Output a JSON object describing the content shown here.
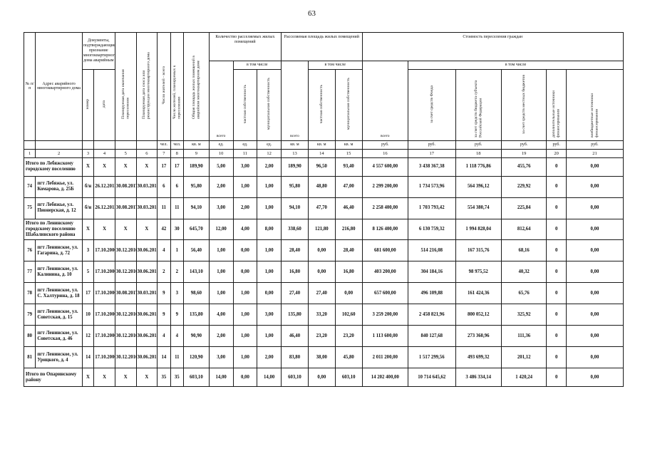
{
  "page": {
    "number": "63"
  },
  "header": {
    "num": "№ п/п",
    "address": "Адрес аварийного многоквартирного дома",
    "docs": "Документы, подтверждающие признание многоквартирного дома аварийным",
    "docs_number": "номер",
    "docs_date": "дата",
    "planned_resettle_date": "Планируемая дата окончания переселения",
    "planned_demolition_date": "Планируемая дата сноса или реконструкции многоквартирного дома",
    "residents_total": "Число жителей - всего",
    "residents_planned": "Число жителей, планируемых к переселению",
    "total_area": "Общая площадь жилых помещений в аварийном многоквартирном доме",
    "count_group": "Количество расселяемых жилых помещений",
    "area_group": "Расселяемая площадь жилых помещений",
    "cost_group": "Стоимость переселения граждан",
    "vsego": "всего",
    "v_tom_chisle": "в том числе",
    "private_prop": "частная собственность",
    "municipal_prop": "муниципальная собственность",
    "cost_fund": "за счет средств Фонда",
    "cost_subject": "за счет средств бюджета субъекта Российской Федерации",
    "cost_local": "за счет средств местных бюджетов",
    "cost_additional": "дополнительные источники финансирования",
    "cost_offbudget": "внебюджетные источники финансирования",
    "units_row": [
      "",
      "",
      "",
      "",
      "",
      "",
      "чел.",
      "чел.",
      "кв. м",
      "ед.",
      "ед.",
      "ед.",
      "кв. м",
      "кв. м",
      "кв. м",
      "руб.",
      "руб.",
      "руб.",
      "руб.",
      "руб.",
      "руб."
    ],
    "col_numbers": [
      "1",
      "2",
      "3",
      "4",
      "5",
      "6",
      "7",
      "8",
      "9",
      "10",
      "11",
      "12",
      "13",
      "14",
      "15",
      "16",
      "17",
      "18",
      "19",
      "20",
      "21"
    ]
  },
  "rows": [
    {
      "type": "total",
      "num": "",
      "address": "Итого по Лебяжскому городскому поселению",
      "cells": [
        "X",
        "X",
        "X",
        "X",
        "17",
        "17",
        "189,90",
        "5,00",
        "3,00",
        "2,00",
        "189,90",
        "96,50",
        "93,40",
        "4 557 600,00",
        "3 438 367,38",
        "1 118 776,86",
        "455,76",
        "0",
        "0,00"
      ]
    },
    {
      "type": "data",
      "num": "74",
      "address": "пгт Лебяжье, ул. Комарова, д. 25Б",
      "cells": [
        "б/н",
        "26.12.2011",
        "30.08.2017",
        "30.03.2018",
        "6",
        "6",
        "95,80",
        "2,00",
        "1,00",
        "1,00",
        "95,80",
        "48,80",
        "47,00",
        "2 299 200,00",
        "1 734 573,96",
        "564 396,12",
        "229,92",
        "0",
        "0,00"
      ]
    },
    {
      "type": "data",
      "num": "75",
      "address": "пгт Лебяжье, ул. Пионерская, д. 12",
      "cells": [
        "б/н",
        "26.12.2011",
        "30.08.2017",
        "30.03.2018",
        "11",
        "11",
        "94,10",
        "3,00",
        "2,00",
        "1,00",
        "94,10",
        "47,70",
        "46,40",
        "2 258 400,00",
        "1 703 793,42",
        "554 380,74",
        "225,84",
        "0",
        "0,00"
      ]
    },
    {
      "type": "total",
      "num": "",
      "address": "Итого по Ленинскому городскому поселению Шабалинского района",
      "cells": [
        "X",
        "X",
        "X",
        "X",
        "42",
        "30",
        "645,70",
        "12,00",
        "4,00",
        "8,00",
        "338,60",
        "121,80",
        "216,80",
        "8 126 400,00",
        "6 130 759,32",
        "1 994 828,04",
        "812,64",
        "0",
        "0,00"
      ]
    },
    {
      "type": "data",
      "num": "76",
      "address": "пгт Ленинское, ул. Гагарина, д. 72",
      "cells": [
        "3",
        "17.10.2006",
        "30.12.2016",
        "30.06.2017",
        "4",
        "1",
        "56,40",
        "1,00",
        "0,00",
        "1,00",
        "28,40",
        "0,00",
        "28,40",
        "681 600,00",
        "514 216,08",
        "167 315,76",
        "68,16",
        "0",
        "0,00"
      ]
    },
    {
      "type": "data",
      "num": "77",
      "address": "пгт Ленинское, ул. Калинина, д. 10",
      "cells": [
        "5",
        "17.10.2006",
        "30.12.2016",
        "30.06.2017",
        "2",
        "2",
        "143,10",
        "1,00",
        "0,00",
        "1,00",
        "16,80",
        "0,00",
        "16,80",
        "403 200,00",
        "304 184,16",
        "98 975,52",
        "40,32",
        "0",
        "0,00"
      ]
    },
    {
      "type": "data",
      "num": "78",
      "address": "пгт Ленинское, ул. С. Халтурина, д. 18",
      "cells": [
        "17",
        "17.10.2006",
        "30.08.2017",
        "30.03.2018",
        "9",
        "3",
        "98,60",
        "1,00",
        "1,00",
        "0,00",
        "27,40",
        "27,40",
        "0,00",
        "657 600,00",
        "496 109,88",
        "161 424,36",
        "65,76",
        "0",
        "0,00"
      ]
    },
    {
      "type": "data",
      "num": "79",
      "address": "пгт Ленинское, ул. Советская, д. 15",
      "cells": [
        "10",
        "17.10.2006",
        "30.12.2016",
        "30.06.2017",
        "9",
        "9",
        "135,80",
        "4,00",
        "1,00",
        "3,00",
        "135,80",
        "33,20",
        "102,60",
        "3 259 200,00",
        "2 458 821,96",
        "800 052,12",
        "325,92",
        "0",
        "0,00"
      ]
    },
    {
      "type": "data",
      "num": "80",
      "address": "пгт Ленинское, ул. Советская, д. 46",
      "cells": [
        "12",
        "17.10.2006",
        "30.12.2016",
        "30.06.2017",
        "4",
        "4",
        "90,90",
        "2,00",
        "1,00",
        "1,00",
        "46,40",
        "23,20",
        "23,20",
        "1 113 600,00",
        "840 127,68",
        "273 360,96",
        "111,36",
        "0",
        "0,00"
      ]
    },
    {
      "type": "data",
      "num": "81",
      "address": "пгт Ленинское, ул. Урицкого, д. 4",
      "cells": [
        "14",
        "17.10.2006",
        "30.12.2016",
        "30.06.2017",
        "14",
        "11",
        "120,90",
        "3,00",
        "1,00",
        "2,00",
        "83,80",
        "38,00",
        "45,80",
        "2 011 200,00",
        "1 517 299,56",
        "493 699,32",
        "201,12",
        "0",
        "0,00"
      ]
    },
    {
      "type": "total",
      "num": "",
      "address": "Итого по Опаринскому району",
      "cells": [
        "X",
        "X",
        "X",
        "X",
        "35",
        "35",
        "603,10",
        "14,00",
        "0,00",
        "14,00",
        "603,10",
        "0,00",
        "603,10",
        "14 202 400,00",
        "10 714 645,62",
        "3 486 334,14",
        "1 420,24",
        "0",
        "0,00"
      ]
    }
  ]
}
